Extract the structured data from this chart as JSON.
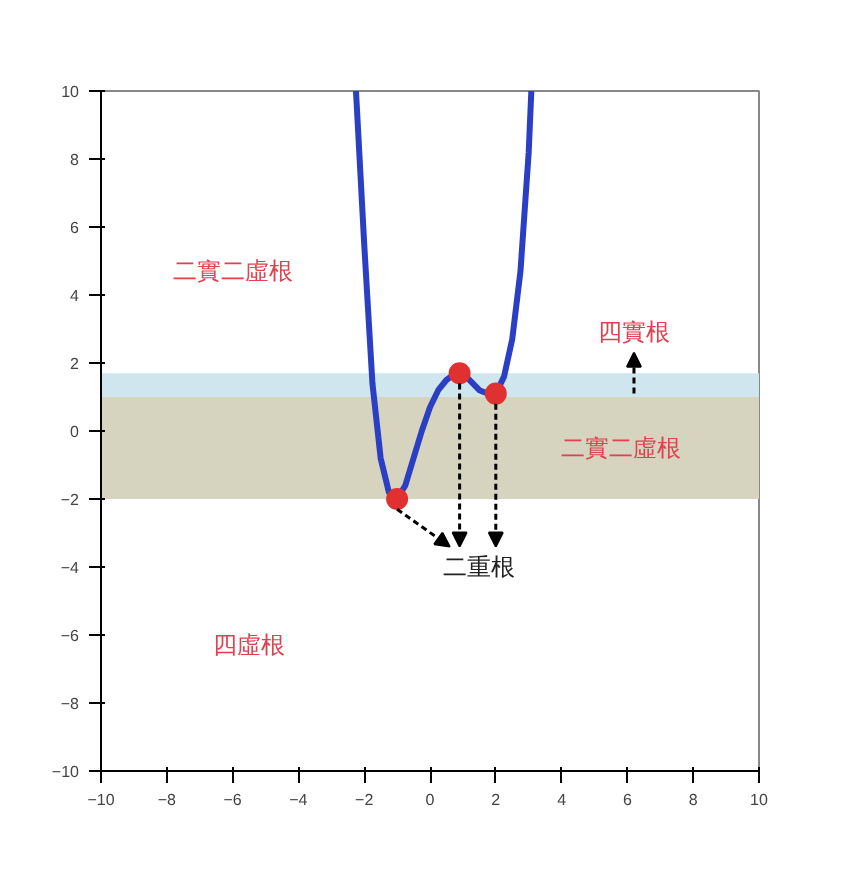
{
  "chart_data": {
    "type": "line",
    "xlim": [
      -10,
      10
    ],
    "ylim": [
      -10,
      10
    ],
    "xticks": [
      -10,
      -8,
      -6,
      -4,
      -2,
      0,
      2,
      4,
      6,
      8,
      10
    ],
    "yticks": [
      -10,
      -8,
      -6,
      -4,
      -2,
      0,
      2,
      4,
      6,
      8,
      10
    ],
    "grid": false,
    "series": [
      {
        "color": "#2b3fc4",
        "x": [
          -2.25,
          -2.0,
          -1.75,
          -1.5,
          -1.25,
          -1.0,
          -0.75,
          -0.5,
          -0.25,
          0,
          0.25,
          0.5,
          0.75,
          0.9,
          1.1,
          1.3,
          1.5,
          1.75,
          2.0,
          2.25,
          2.5,
          2.75,
          3.0,
          3.08
        ],
        "values": [
          10,
          5.5,
          1.4,
          -0.8,
          -1.8,
          -2.0,
          -1.6,
          -0.8,
          0,
          0.7,
          1.2,
          1.5,
          1.68,
          1.7,
          1.6,
          1.4,
          1.2,
          1.1,
          1.1,
          1.6,
          2.7,
          4.7,
          8.2,
          10
        ]
      },
      {
        "type": "scatter",
        "color": "#e03030",
        "marker": "circle",
        "x": [
          -1.0,
          0.9,
          2.0
        ],
        "values": [
          -2.0,
          1.7,
          1.1
        ]
      }
    ],
    "bands": [
      {
        "axis": "y",
        "from": 1.0,
        "to": 1.7,
        "color": "#cfe6ee"
      },
      {
        "axis": "y",
        "from": -2.0,
        "to": 1.0,
        "color": "#d6d4bf"
      }
    ],
    "annotations": [
      "二實二虛根",
      "四實根",
      "二實二虛根",
      {
        "text": "二重根",
        "x": 0.9,
        "y": 1.7
      },
      "四虛根"
    ]
  }
}
